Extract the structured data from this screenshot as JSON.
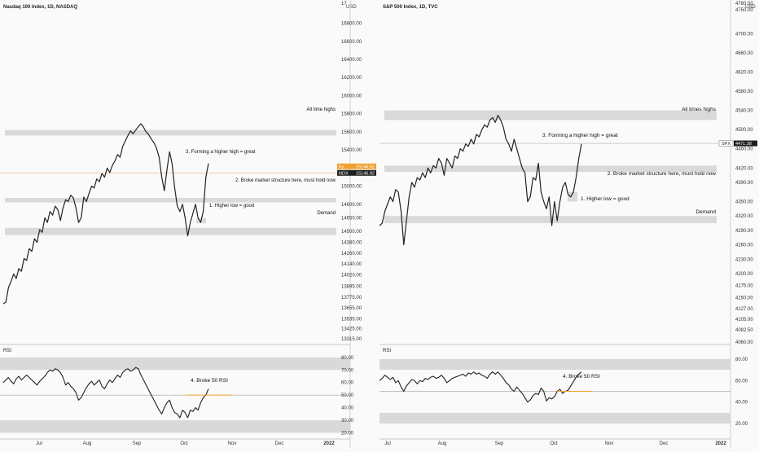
{
  "chart_data": [
    {
      "type": "line",
      "title": "Nasdaq 100 Index, 1D, NASDAQ",
      "currency": "USD",
      "ylim": [
        13260,
        17030
      ],
      "price_ticks": [
        16800,
        16600,
        16400,
        16200,
        16000,
        15800,
        15600,
        15400,
        15000,
        14800,
        14650,
        14500,
        14380,
        14260,
        14140,
        14020,
        13895,
        13775,
        13655,
        13535,
        13425,
        13315
      ],
      "top_partial_tick": "17",
      "time_labels": [
        "Jul",
        "Aug",
        "Sep",
        "Oct",
        "Nov",
        "Dec",
        "2022"
      ],
      "last_price": {
        "symbol": "NDX",
        "value": "15146.92",
        "color": "#1e1e1e"
      },
      "prev_price": {
        "symbol": "fry",
        "value": "15146.92",
        "color": "#f0a030"
      },
      "annotations": {
        "ath": "All time highs",
        "higher_high": "3. Forming a higher high = great",
        "structure": "2. Broke market structure here, must hold now",
        "higher_low": "1. Higher low = good",
        "demand": "Demand"
      },
      "series": [
        {
          "values": [
            13700,
            13720,
            13880,
            13950,
            14030,
            13980,
            14090,
            14060,
            14200,
            14180,
            14310,
            14280,
            14420,
            14380,
            14520,
            14490,
            14650,
            14600,
            14720,
            14680,
            14780,
            14740,
            14620,
            14760,
            14850,
            14830,
            14900,
            14870,
            14760,
            14600,
            14650,
            14880,
            14830,
            14920,
            15000,
            14980,
            15080,
            15050,
            15140,
            15100,
            15200,
            15150,
            15230,
            15280,
            15350,
            15320,
            15440,
            15500,
            15560,
            15610,
            15580,
            15620,
            15660,
            15690,
            15650,
            15600,
            15570,
            15520,
            15480,
            15420,
            15320,
            15100,
            14950,
            15180,
            15380,
            15250,
            14980,
            14780,
            14720,
            14800,
            14650,
            14450,
            14600,
            14700,
            14800,
            14650,
            14600,
            14720,
            15100,
            15250
          ]
        }
      ],
      "rsi": {
        "label": "RSI",
        "ylim": [
          17,
          89
        ],
        "ticks": [
          80,
          70,
          60,
          50,
          40,
          30,
          20
        ],
        "note": "4. Broke 50 RSI",
        "values": [
          60,
          62,
          64,
          61,
          59,
          63,
          65,
          62,
          64,
          66,
          64,
          62,
          60,
          58,
          61,
          63,
          65,
          68,
          70,
          69,
          71,
          70,
          68,
          64,
          58,
          60,
          57,
          55,
          52,
          46,
          48,
          52,
          56,
          59,
          61,
          58,
          60,
          62,
          57,
          55,
          59,
          62,
          60,
          63,
          66,
          64,
          68,
          70,
          71,
          69,
          70,
          72,
          71,
          66,
          62,
          58,
          54,
          50,
          46,
          42,
          38,
          35,
          40,
          44,
          46,
          40,
          36,
          35,
          32,
          38,
          36,
          32,
          38,
          37,
          40,
          38,
          44,
          48,
          50,
          55
        ]
      }
    },
    {
      "type": "line",
      "title": "S&P 500 Index, 1D, TVC",
      "currency": "USD",
      "ylim": [
        4054,
        4765
      ],
      "price_ticks": [
        4750,
        4700,
        4660,
        4620,
        4580,
        4540,
        4500,
        4460,
        4420,
        4390,
        4350,
        4320,
        4290,
        4260,
        4230,
        4200,
        4175,
        4150,
        4127,
        4105,
        4082.5
      ],
      "tick_labels": [
        "4750.00",
        "4700.00",
        "4660.00",
        "4620.00",
        "4580.00",
        "4540.00",
        "4500.00",
        "4460.00",
        "4420.00",
        "4390.00",
        "4350.00",
        "4320.00",
        "4290.00",
        "4260.00",
        "4230.00",
        "4200.00",
        "4175.00",
        "4150.00",
        "4127.00",
        "4105.00",
        "4082.50"
      ],
      "top_partial_tick": "4780.00",
      "bottom_partial_tick": "4060.00",
      "time_labels": [
        "Jul",
        "Aug",
        "Sep",
        "Oct",
        "Nov",
        "Dec",
        "2022"
      ],
      "last_price": {
        "symbol": "SPX",
        "value": "4471.38",
        "color": "#1e1e1e"
      },
      "annotations": {
        "ath": "All times highs",
        "higher_high": "3. Forming a higher high = great",
        "structure": "2. Broke market structure here, must hold now",
        "higher_low": "1. Higher low = good",
        "demand": "Demand"
      },
      "series": [
        {
          "values": [
            4300,
            4305,
            4330,
            4345,
            4360,
            4350,
            4375,
            4370,
            4330,
            4260,
            4310,
            4360,
            4390,
            4380,
            4400,
            4395,
            4410,
            4400,
            4420,
            4410,
            4425,
            4420,
            4440,
            4430,
            4405,
            4440,
            4430,
            4420,
            4445,
            4440,
            4460,
            4455,
            4470,
            4465,
            4480,
            4470,
            4490,
            4485,
            4500,
            4510,
            4505,
            4520,
            4525,
            4515,
            4530,
            4520,
            4505,
            4480,
            4470,
            4455,
            4480,
            4460,
            4440,
            4420,
            4410,
            4350,
            4360,
            4400,
            4395,
            4430,
            4370,
            4350,
            4335,
            4360,
            4300,
            4350,
            4310,
            4350,
            4380,
            4390,
            4365,
            4360,
            4370,
            4400,
            4440,
            4470
          ]
        }
      ],
      "rsi": {
        "label": "RSI",
        "ylim": [
          8,
          92
        ],
        "ticks": [
          80,
          60,
          40,
          20
        ],
        "note": "4. Broke 50 RSI",
        "values": [
          60,
          62,
          65,
          63,
          61,
          63,
          58,
          60,
          54,
          50,
          55,
          58,
          61,
          60,
          57,
          60,
          59,
          62,
          61,
          63,
          64,
          62,
          63,
          65,
          62,
          58,
          60,
          62,
          63,
          64,
          65,
          66,
          64,
          67,
          66,
          68,
          66,
          67,
          65,
          64,
          62,
          66,
          68,
          66,
          68,
          65,
          62,
          58,
          56,
          52,
          50,
          54,
          51,
          48,
          44,
          40,
          42,
          46,
          48,
          47,
          53,
          50,
          41,
          44,
          43,
          45,
          50,
          52,
          48,
          50,
          51,
          55,
          59,
          63,
          66,
          68
        ]
      }
    }
  ]
}
